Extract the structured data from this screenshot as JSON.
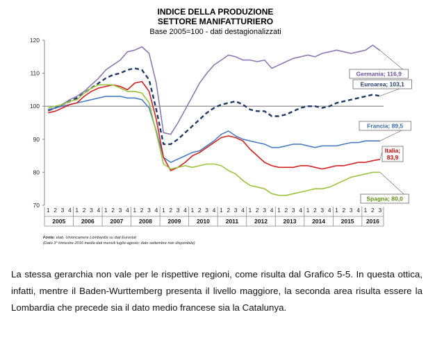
{
  "chart_data": {
    "type": "line",
    "title": [
      "INDICE DELLA PRODUZIONE",
      "SETTORE MANIFATTURIERO"
    ],
    "subtitle": "Base 2005=100 - dati destagionalizzati",
    "ylim": [
      70,
      120
    ],
    "yticks": [
      "70",
      "80",
      "90",
      "100",
      "110",
      "120"
    ],
    "reference_value": 100,
    "grid": false,
    "quarter_ticks": [
      "1",
      "2",
      "3",
      "4",
      "1",
      "2",
      "3",
      "4",
      "1",
      "2",
      "3",
      "4",
      "1",
      "2",
      "3",
      "4",
      "1",
      "2",
      "3",
      "4",
      "1",
      "2",
      "3",
      "4",
      "1",
      "2",
      "3",
      "4",
      "1",
      "2",
      "3",
      "4",
      "1",
      "2",
      "3",
      "4",
      "1",
      "2",
      "3",
      "4",
      "1",
      "2",
      "3",
      "4",
      "1",
      "2",
      "3"
    ],
    "years": [
      "2005",
      "2006",
      "2007",
      "2008",
      "2009",
      "2010",
      "2011",
      "2012",
      "2013",
      "2014",
      "2015",
      "2016"
    ],
    "series": [
      {
        "name": "Germania",
        "end_label": "Germania; 116,9",
        "color": "#8a78b4",
        "dash": false,
        "label_color": "#6a4f9a",
        "values": [
          98.5,
          99.5,
          100.5,
          102.0,
          103.0,
          104.5,
          106.5,
          108.5,
          111.0,
          112.5,
          114.0,
          116.5,
          117.0,
          118.0,
          116.0,
          107.0,
          92.0,
          91.5,
          95.0,
          99.0,
          103.0,
          107.0,
          110.0,
          112.5,
          114.0,
          115.5,
          115.0,
          114.0,
          114.0,
          113.5,
          114.0,
          111.5,
          112.5,
          113.5,
          114.5,
          115.0,
          115.5,
          115.0,
          116.0,
          116.5,
          117.0,
          116.5,
          116.0,
          116.5,
          117.0,
          118.5,
          116.9
        ]
      },
      {
        "name": "Euroarea",
        "end_label": "Euroarea; 103,1",
        "color": "#1f3a68",
        "dash": true,
        "label_color": "#1f3a68",
        "values": [
          98.8,
          99.5,
          100.5,
          101.5,
          102.5,
          104.0,
          105.5,
          107.0,
          108.5,
          109.5,
          110.0,
          111.0,
          111.5,
          111.0,
          108.0,
          99.0,
          88.5,
          88.5,
          90.0,
          92.0,
          94.0,
          96.0,
          98.0,
          99.5,
          100.5,
          101.0,
          101.5,
          100.5,
          99.0,
          98.5,
          98.5,
          97.0,
          97.0,
          97.5,
          98.5,
          99.5,
          100.0,
          100.0,
          99.5,
          100.0,
          101.0,
          101.5,
          102.0,
          102.5,
          103.0,
          103.5,
          103.1
        ]
      },
      {
        "name": "Francia",
        "end_label": "Francia; 89,5",
        "color": "#4a7dc0",
        "dash": false,
        "label_color": "#3a6ab0",
        "values": [
          99.0,
          99.5,
          100.0,
          100.5,
          101.0,
          101.5,
          102.0,
          102.5,
          103.0,
          103.0,
          103.0,
          102.5,
          102.5,
          102.0,
          99.5,
          92.5,
          84.5,
          83.0,
          84.0,
          85.0,
          86.0,
          86.5,
          88.0,
          89.5,
          91.5,
          92.5,
          91.0,
          90.0,
          89.5,
          89.0,
          88.5,
          87.5,
          87.5,
          88.0,
          88.5,
          88.5,
          88.0,
          87.5,
          88.0,
          88.0,
          88.0,
          88.5,
          89.0,
          89.0,
          89.5,
          89.5,
          89.5
        ]
      },
      {
        "name": "Italia",
        "end_label": "Italia; 83,9",
        "color": "#d02020",
        "dash": false,
        "label_color": "#c00000",
        "values": [
          98.0,
          98.5,
          99.5,
          100.5,
          101.0,
          103.0,
          104.5,
          105.5,
          106.0,
          106.5,
          106.0,
          105.0,
          107.0,
          107.5,
          104.5,
          96.0,
          84.5,
          80.5,
          81.5,
          83.0,
          85.0,
          86.0,
          87.5,
          89.0,
          90.5,
          91.0,
          90.5,
          89.5,
          87.0,
          85.0,
          83.0,
          82.0,
          81.5,
          81.5,
          81.5,
          82.0,
          82.0,
          81.5,
          81.0,
          81.5,
          82.0,
          82.0,
          82.5,
          83.0,
          83.0,
          83.5,
          83.9
        ]
      },
      {
        "name": "Spagna",
        "end_label": "Spagna; 80,0",
        "color": "#9ac23c",
        "dash": false,
        "label_color": "#5e8f16",
        "values": [
          99.5,
          100.0,
          100.5,
          101.5,
          102.0,
          104.0,
          105.5,
          106.5,
          106.5,
          106.5,
          105.5,
          104.5,
          104.5,
          104.0,
          101.0,
          92.0,
          82.5,
          81.0,
          81.5,
          82.0,
          81.5,
          82.0,
          82.5,
          82.5,
          82.0,
          80.5,
          79.5,
          77.5,
          76.0,
          75.5,
          75.0,
          73.5,
          73.0,
          73.0,
          73.5,
          74.0,
          74.5,
          75.0,
          75.0,
          75.5,
          76.5,
          77.5,
          78.5,
          79.0,
          79.5,
          80.0,
          80.0
        ]
      }
    ]
  },
  "source": {
    "label": "Fonte:",
    "text": " elab. Unioncamere Lombardia su dati Eurostat",
    "note": "(Dato 3° trimestre 2016 media dati mensili luglio-agosto; dato settembre non disponibile)"
  },
  "body_text": "La stessa gerarchia non vale per le rispettive regioni, come risulta dal Grafico 5-5. In questa ottica, infatti, mentre il Baden-Wurttemberg presenta il livello maggiore, la seconda area risulta essere la Lombardia che precede sia il dato medio francese sia la Catalunya."
}
